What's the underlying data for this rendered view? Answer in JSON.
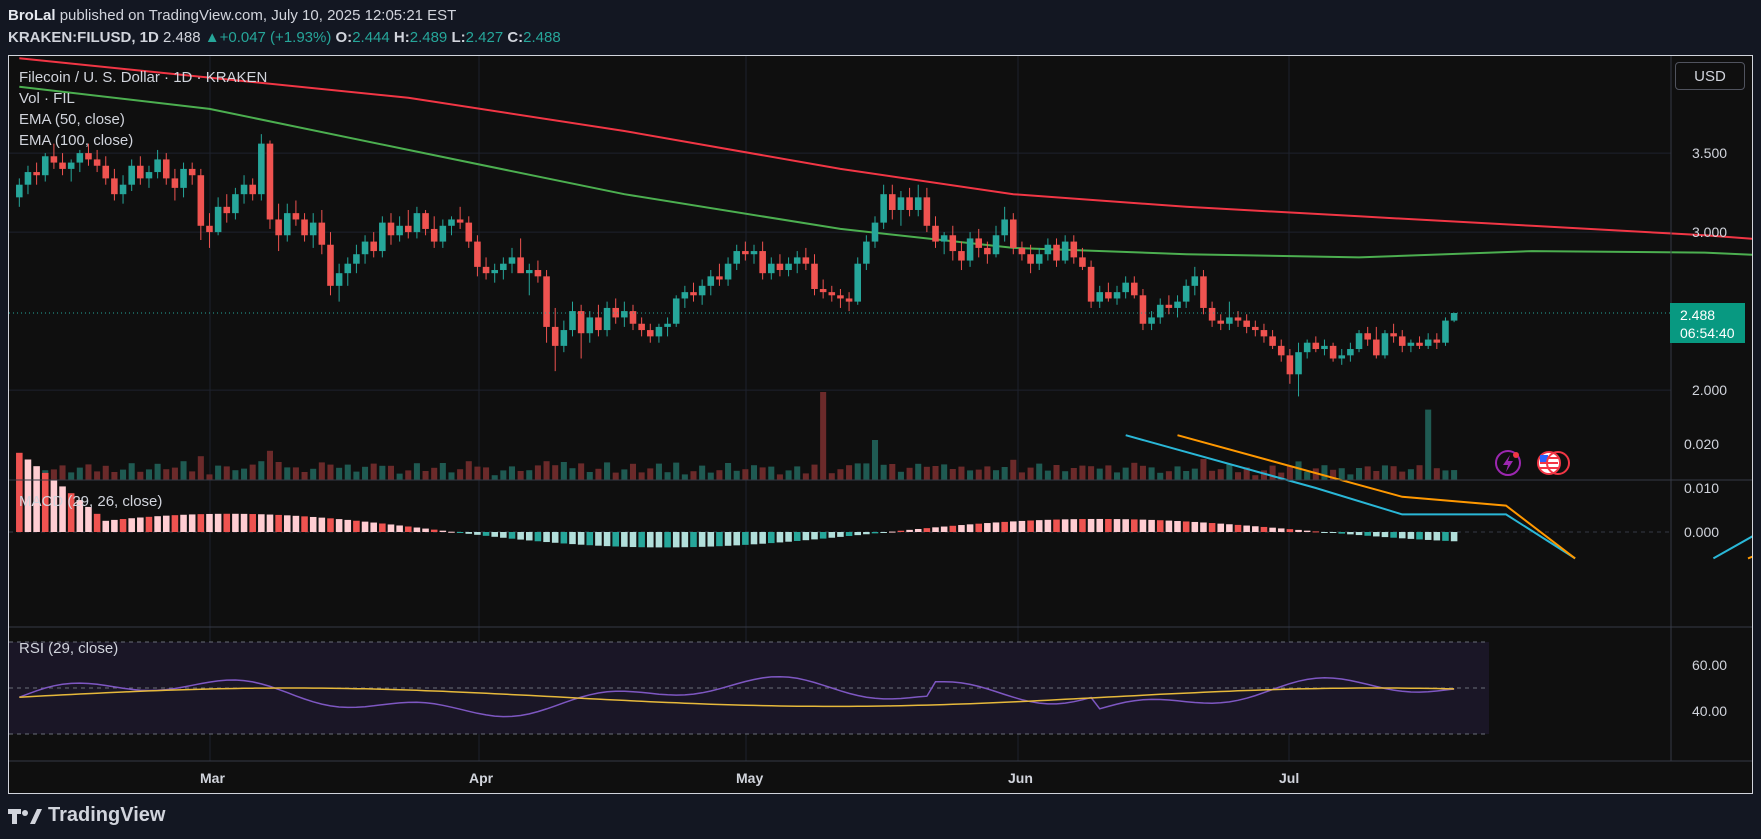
{
  "header": {
    "author": "BroLal",
    "published_text": "published on TradingView.com, July 10, 2025 12:05:21 EST",
    "symbol": "KRAKEN:FILUSD, 1D",
    "last": "2.488",
    "change": "+0.047 (+1.93%)",
    "o_label": "O:",
    "o_value": "2.444",
    "h_label": "H:",
    "h_value": "2.489",
    "l_label": "L:",
    "l_value": "2.427",
    "c_label": "C:",
    "c_value": "2.488"
  },
  "legend": {
    "title": "Filecoin / U. S. Dollar · 1D · KRAKEN",
    "vol": "Vol · FIL",
    "ema50": "EMA (50, close)",
    "ema100": "EMA (100, close)"
  },
  "currency_button": "USD",
  "price_label": {
    "price": "2.488",
    "countdown": "06:54:40"
  },
  "macd_label": "MACD (29, 26, close)",
  "rsi_label": "RSI (29, close)",
  "brand": "TradingView",
  "colors": {
    "bull": "#26a69a",
    "bear": "#ef5350",
    "ema50": "#4caf50",
    "ema100": "#f23645",
    "macd": "#2ab7d7",
    "signal": "#ff9800",
    "rsi": "#7e57c2",
    "rsi_ma": "#e6b93b"
  },
  "chart_data": [
    {
      "type": "candlestick",
      "title": "Filecoin / U. S. Dollar · 1D · KRAKEN",
      "x_tick_labels": [
        "Mar",
        "Apr",
        "May",
        "Jun",
        "Jul"
      ],
      "y_tick_labels": [
        "3.500",
        "3.000",
        "2.000"
      ],
      "ylim": [
        1.55,
        3.88
      ],
      "start_date": "2025-01-26",
      "last_close": 2.488,
      "ohlc_approx": [
        [
          3.22,
          3.34,
          3.16,
          3.3
        ],
        [
          3.3,
          3.42,
          3.24,
          3.38
        ],
        [
          3.38,
          3.44,
          3.3,
          3.36
        ],
        [
          3.36,
          3.5,
          3.32,
          3.48
        ],
        [
          3.48,
          3.56,
          3.4,
          3.44
        ],
        [
          3.44,
          3.5,
          3.36,
          3.4
        ],
        [
          3.4,
          3.46,
          3.32,
          3.44
        ],
        [
          3.44,
          3.52,
          3.38,
          3.5
        ],
        [
          3.5,
          3.56,
          3.42,
          3.46
        ],
        [
          3.46,
          3.52,
          3.38,
          3.42
        ],
        [
          3.42,
          3.48,
          3.3,
          3.34
        ],
        [
          3.34,
          3.4,
          3.2,
          3.24
        ],
        [
          3.24,
          3.36,
          3.18,
          3.3
        ],
        [
          3.3,
          3.46,
          3.26,
          3.42
        ],
        [
          3.42,
          3.48,
          3.3,
          3.34
        ],
        [
          3.34,
          3.42,
          3.28,
          3.38
        ],
        [
          3.38,
          3.52,
          3.34,
          3.46
        ],
        [
          3.46,
          3.5,
          3.3,
          3.34
        ],
        [
          3.34,
          3.4,
          3.2,
          3.28
        ],
        [
          3.28,
          3.44,
          3.22,
          3.4
        ],
        [
          3.4,
          3.44,
          3.3,
          3.36
        ],
        [
          3.36,
          3.4,
          2.95,
          3.04
        ],
        [
          3.04,
          3.12,
          2.9,
          3.0
        ],
        [
          3.0,
          3.22,
          2.98,
          3.16
        ],
        [
          3.16,
          3.24,
          3.06,
          3.12
        ],
        [
          3.12,
          3.28,
          3.08,
          3.24
        ],
        [
          3.24,
          3.36,
          3.18,
          3.3
        ],
        [
          3.3,
          3.34,
          3.2,
          3.24
        ],
        [
          3.24,
          3.62,
          3.2,
          3.56
        ],
        [
          3.56,
          3.58,
          3.02,
          3.08
        ],
        [
          3.08,
          3.18,
          2.88,
          2.98
        ],
        [
          2.98,
          3.18,
          2.94,
          3.12
        ],
        [
          3.12,
          3.2,
          3.04,
          3.08
        ],
        [
          3.08,
          3.12,
          2.94,
          2.98
        ],
        [
          2.98,
          3.12,
          2.9,
          3.06
        ],
        [
          3.06,
          3.14,
          2.86,
          2.92
        ],
        [
          2.92,
          3.0,
          2.6,
          2.66
        ],
        [
          2.66,
          2.8,
          2.56,
          2.74
        ],
        [
          2.74,
          2.84,
          2.66,
          2.8
        ],
        [
          2.8,
          2.92,
          2.74,
          2.86
        ],
        [
          2.86,
          2.98,
          2.8,
          2.94
        ],
        [
          2.94,
          3.0,
          2.84,
          2.88
        ],
        [
          2.88,
          3.1,
          2.84,
          3.06
        ],
        [
          3.06,
          3.12,
          2.92,
          2.98
        ],
        [
          2.98,
          3.1,
          2.94,
          3.04
        ],
        [
          3.04,
          3.14,
          2.96,
          3.0
        ],
        [
          3.0,
          3.16,
          2.96,
          3.12
        ],
        [
          3.12,
          3.14,
          2.98,
          3.02
        ],
        [
          3.02,
          3.1,
          2.9,
          2.94
        ],
        [
          2.94,
          3.08,
          2.9,
          3.04
        ],
        [
          3.04,
          3.1,
          2.98,
          3.08
        ],
        [
          3.08,
          3.16,
          3.02,
          3.06
        ],
        [
          3.06,
          3.1,
          2.9,
          2.94
        ],
        [
          2.94,
          2.98,
          2.72,
          2.78
        ],
        [
          2.78,
          2.84,
          2.7,
          2.74
        ],
        [
          2.74,
          2.8,
          2.68,
          2.76
        ],
        [
          2.76,
          2.84,
          2.7,
          2.8
        ],
        [
          2.8,
          2.9,
          2.74,
          2.84
        ],
        [
          2.84,
          2.96,
          2.78,
          2.74
        ],
        [
          2.74,
          2.8,
          2.6,
          2.76
        ],
        [
          2.76,
          2.82,
          2.68,
          2.72
        ],
        [
          2.72,
          2.76,
          2.3,
          2.4
        ],
        [
          2.4,
          2.52,
          2.12,
          2.28
        ],
        [
          2.28,
          2.44,
          2.24,
          2.38
        ],
        [
          2.38,
          2.56,
          2.34,
          2.5
        ],
        [
          2.5,
          2.54,
          2.2,
          2.36
        ],
        [
          2.36,
          2.5,
          2.3,
          2.46
        ],
        [
          2.46,
          2.54,
          2.34,
          2.38
        ],
        [
          2.38,
          2.56,
          2.34,
          2.52
        ],
        [
          2.52,
          2.58,
          2.42,
          2.46
        ],
        [
          2.46,
          2.56,
          2.4,
          2.5
        ],
        [
          2.5,
          2.54,
          2.38,
          2.42
        ],
        [
          2.42,
          2.46,
          2.34,
          2.38
        ],
        [
          2.38,
          2.42,
          2.3,
          2.34
        ],
        [
          2.34,
          2.42,
          2.3,
          2.4
        ],
        [
          2.4,
          2.46,
          2.34,
          2.42
        ],
        [
          2.42,
          2.6,
          2.4,
          2.58
        ],
        [
          2.58,
          2.66,
          2.52,
          2.62
        ],
        [
          2.62,
          2.68,
          2.56,
          2.6
        ],
        [
          2.6,
          2.7,
          2.54,
          2.66
        ],
        [
          2.66,
          2.76,
          2.6,
          2.72
        ],
        [
          2.72,
          2.8,
          2.66,
          2.7
        ],
        [
          2.7,
          2.84,
          2.66,
          2.8
        ],
        [
          2.8,
          2.92,
          2.76,
          2.88
        ],
        [
          2.88,
          2.94,
          2.82,
          2.86
        ],
        [
          2.86,
          2.92,
          2.8,
          2.88
        ],
        [
          2.88,
          2.94,
          2.7,
          2.74
        ],
        [
          2.74,
          2.84,
          2.7,
          2.8
        ],
        [
          2.8,
          2.86,
          2.72,
          2.76
        ],
        [
          2.76,
          2.84,
          2.72,
          2.8
        ],
        [
          2.8,
          2.88,
          2.74,
          2.84
        ],
        [
          2.84,
          2.9,
          2.76,
          2.8
        ],
        [
          2.8,
          2.86,
          2.6,
          2.64
        ],
        [
          2.64,
          2.7,
          2.58,
          2.62
        ],
        [
          2.62,
          2.66,
          2.56,
          2.6
        ],
        [
          2.6,
          2.64,
          2.52,
          2.58
        ],
        [
          2.58,
          2.62,
          2.5,
          2.56
        ],
        [
          2.56,
          2.84,
          2.54,
          2.8
        ],
        [
          2.8,
          2.98,
          2.76,
          2.94
        ],
        [
          2.94,
          3.1,
          2.9,
          3.06
        ],
        [
          3.06,
          3.3,
          3.02,
          3.24
        ],
        [
          3.24,
          3.3,
          3.08,
          3.14
        ],
        [
          3.14,
          3.26,
          3.04,
          3.22
        ],
        [
          3.22,
          3.28,
          3.1,
          3.14
        ],
        [
          3.14,
          3.3,
          3.1,
          3.22
        ],
        [
          3.22,
          3.28,
          3.0,
          3.04
        ],
        [
          3.04,
          3.1,
          2.9,
          2.94
        ],
        [
          2.94,
          3.0,
          2.86,
          2.98
        ],
        [
          2.98,
          3.04,
          2.82,
          2.88
        ],
        [
          2.88,
          2.94,
          2.76,
          2.82
        ],
        [
          2.82,
          3.0,
          2.78,
          2.96
        ],
        [
          2.96,
          3.02,
          2.84,
          2.9
        ],
        [
          2.9,
          2.94,
          2.8,
          2.86
        ],
        [
          2.86,
          3.04,
          2.84,
          2.98
        ],
        [
          2.98,
          3.16,
          2.94,
          3.08
        ],
        [
          3.08,
          3.12,
          2.86,
          2.9
        ],
        [
          2.9,
          2.94,
          2.82,
          2.86
        ],
        [
          2.86,
          2.92,
          2.74,
          2.8
        ],
        [
          2.8,
          2.9,
          2.76,
          2.86
        ],
        [
          2.86,
          2.96,
          2.82,
          2.92
        ],
        [
          2.92,
          2.96,
          2.78,
          2.82
        ],
        [
          2.82,
          2.98,
          2.8,
          2.94
        ],
        [
          2.94,
          2.98,
          2.8,
          2.84
        ],
        [
          2.84,
          2.9,
          2.76,
          2.78
        ],
        [
          2.78,
          2.82,
          2.52,
          2.56
        ],
        [
          2.56,
          2.66,
          2.52,
          2.62
        ],
        [
          2.62,
          2.68,
          2.56,
          2.58
        ],
        [
          2.58,
          2.66,
          2.54,
          2.62
        ],
        [
          2.62,
          2.72,
          2.58,
          2.68
        ],
        [
          2.68,
          2.72,
          2.58,
          2.6
        ],
        [
          2.6,
          2.64,
          2.38,
          2.42
        ],
        [
          2.42,
          2.5,
          2.38,
          2.46
        ],
        [
          2.46,
          2.58,
          2.42,
          2.54
        ],
        [
          2.54,
          2.6,
          2.48,
          2.52
        ],
        [
          2.52,
          2.6,
          2.46,
          2.56
        ],
        [
          2.56,
          2.7,
          2.52,
          2.66
        ],
        [
          2.66,
          2.78,
          2.6,
          2.72
        ],
        [
          2.72,
          2.76,
          2.48,
          2.52
        ],
        [
          2.52,
          2.56,
          2.4,
          2.44
        ],
        [
          2.44,
          2.48,
          2.38,
          2.42
        ],
        [
          2.42,
          2.56,
          2.38,
          2.46
        ],
        [
          2.46,
          2.5,
          2.4,
          2.44
        ],
        [
          2.44,
          2.48,
          2.36,
          2.4
        ],
        [
          2.4,
          2.44,
          2.34,
          2.38
        ],
        [
          2.38,
          2.42,
          2.3,
          2.34
        ],
        [
          2.34,
          2.38,
          2.26,
          2.28
        ],
        [
          2.28,
          2.32,
          2.18,
          2.22
        ],
        [
          2.22,
          2.26,
          2.04,
          2.1
        ],
        [
          2.1,
          2.3,
          1.96,
          2.24
        ],
        [
          2.24,
          2.32,
          2.2,
          2.3
        ],
        [
          2.3,
          2.34,
          2.24,
          2.26
        ],
        [
          2.26,
          2.32,
          2.22,
          2.28
        ],
        [
          2.28,
          2.3,
          2.18,
          2.2
        ],
        [
          2.2,
          2.26,
          2.16,
          2.22
        ],
        [
          2.22,
          2.3,
          2.18,
          2.26
        ],
        [
          2.26,
          2.38,
          2.24,
          2.36
        ],
        [
          2.36,
          2.4,
          2.28,
          2.32
        ],
        [
          2.32,
          2.4,
          2.2,
          2.22
        ],
        [
          2.22,
          2.38,
          2.2,
          2.36
        ],
        [
          2.36,
          2.42,
          2.3,
          2.34
        ],
        [
          2.34,
          2.38,
          2.24,
          2.28
        ],
        [
          2.28,
          2.32,
          2.24,
          2.3
        ],
        [
          2.3,
          2.34,
          2.26,
          2.28
        ],
        [
          2.28,
          2.36,
          2.26,
          2.32
        ],
        [
          2.32,
          2.36,
          2.26,
          2.3
        ],
        [
          2.3,
          2.46,
          2.28,
          2.44
        ],
        [
          2.44,
          2.49,
          2.43,
          2.488
        ]
      ]
    },
    {
      "type": "line",
      "title": "EMA (50, close) / EMA (100, close)",
      "series": [
        {
          "name": "EMA (50, close)",
          "points": [
            [
              0,
              3.92
            ],
            [
              22,
              3.78
            ],
            [
              45,
              3.52
            ],
            [
              70,
              3.24
            ],
            [
              95,
              3.02
            ],
            [
              115,
              2.9
            ],
            [
              135,
              2.86
            ],
            [
              155,
              2.84
            ],
            [
              175,
              2.88
            ],
            [
              195,
              2.87
            ],
            [
              215,
              2.82
            ],
            [
              235,
              2.7
            ],
            [
              255,
              2.6
            ],
            [
              275,
              2.52
            ],
            [
              286,
              2.49
            ]
          ]
        },
        {
          "name": "EMA (100, close)",
          "points": [
            [
              0,
              4.1
            ],
            [
              45,
              3.85
            ],
            [
              70,
              3.64
            ],
            [
              95,
              3.4
            ],
            [
              115,
              3.24
            ],
            [
              135,
              3.16
            ],
            [
              155,
              3.1
            ],
            [
              175,
              3.04
            ],
            [
              195,
              2.98
            ],
            [
              215,
              2.9
            ],
            [
              235,
              2.8
            ],
            [
              255,
              2.72
            ],
            [
              275,
              2.68
            ],
            [
              286,
              2.66
            ]
          ]
        }
      ]
    },
    {
      "type": "bar",
      "title": "Vol · FIL",
      "note": "daily volume, relative scale",
      "spikes": [
        {
          "index": 99,
          "value": 25
        },
        {
          "index": 163,
          "value": 44
        },
        {
          "index": 93,
          "value": 55
        }
      ]
    },
    {
      "type": "line",
      "title": "MACD (29, 26, close)",
      "y_tick_labels": [
        "0.020",
        "0.010",
        "0.000"
      ],
      "ylim": [
        -0.006,
        0.022
      ],
      "series": [
        {
          "name": "MACD",
          "points": [
            [
              128,
              0.022
            ],
            [
              150,
              0.01
            ],
            [
              160,
              0.004
            ],
            [
              172,
              0.004
            ],
            [
              180,
              -0.006
            ]
          ]
        },
        {
          "name": "Signal",
          "points": [
            [
              134,
              0.022
            ],
            [
              160,
              0.008
            ],
            [
              172,
              0.006
            ],
            [
              180,
              -0.006
            ]
          ]
        }
      ]
    },
    {
      "type": "line",
      "title": "RSI (29, close)",
      "y_tick_labels": [
        "60.00",
        "40.00"
      ],
      "ylim": [
        30,
        70
      ]
    }
  ]
}
